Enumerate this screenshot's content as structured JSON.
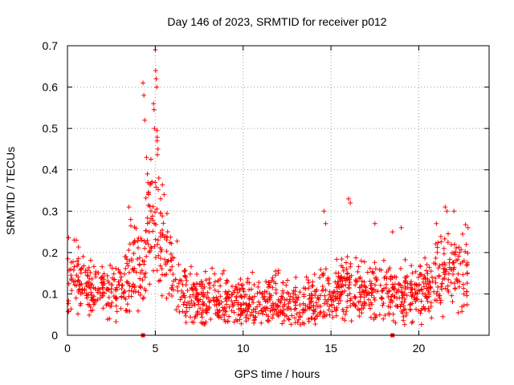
{
  "chart_data": {
    "type": "scatter",
    "title": "Day 146 of 2023, SRMTID for receiver p012",
    "xlabel": "GPS time / hours",
    "ylabel": "SRMTID / TECUs",
    "xlim": [
      0,
      24
    ],
    "ylim": [
      0,
      0.7
    ],
    "xticks": [
      0,
      5,
      10,
      15,
      20
    ],
    "xtick_labels": [
      "0",
      "5",
      "10",
      "15",
      "20"
    ],
    "yticks": [
      0,
      0.1,
      0.2,
      0.3,
      0.4,
      0.5,
      0.6,
      0.7
    ],
    "ytick_labels": [
      "0",
      "0.1",
      "0.2",
      "0.3",
      "0.4",
      "0.5",
      "0.6",
      "0.7"
    ],
    "grid": true,
    "marker": "+",
    "series_color": "#ff0000",
    "trend": [
      [
        0.0,
        0.13
      ],
      [
        0.5,
        0.15
      ],
      [
        1.0,
        0.11
      ],
      [
        1.5,
        0.1
      ],
      [
        2.0,
        0.11
      ],
      [
        2.5,
        0.12
      ],
      [
        3.0,
        0.12
      ],
      [
        3.5,
        0.15
      ],
      [
        4.0,
        0.18
      ],
      [
        4.3,
        0.14
      ],
      [
        4.5,
        0.25
      ],
      [
        4.8,
        0.3
      ],
      [
        5.0,
        0.33
      ],
      [
        5.3,
        0.22
      ],
      [
        5.5,
        0.2
      ],
      [
        6.0,
        0.14
      ],
      [
        6.5,
        0.12
      ],
      [
        7.0,
        0.1
      ],
      [
        8.0,
        0.09
      ],
      [
        9.0,
        0.08
      ],
      [
        10.0,
        0.08
      ],
      [
        11.0,
        0.08
      ],
      [
        12.0,
        0.08
      ],
      [
        13.0,
        0.07
      ],
      [
        14.0,
        0.08
      ],
      [
        14.5,
        0.09
      ],
      [
        15.0,
        0.1
      ],
      [
        15.5,
        0.11
      ],
      [
        16.0,
        0.12
      ],
      [
        17.0,
        0.1
      ],
      [
        17.5,
        0.11
      ],
      [
        18.0,
        0.12
      ],
      [
        18.5,
        0.11
      ],
      [
        19.0,
        0.1
      ],
      [
        20.0,
        0.1
      ],
      [
        20.5,
        0.11
      ],
      [
        21.0,
        0.15
      ],
      [
        21.5,
        0.17
      ],
      [
        22.0,
        0.15
      ],
      [
        22.5,
        0.15
      ],
      [
        22.8,
        0.16
      ]
    ],
    "spikes": [
      [
        4.3,
        0.61
      ],
      [
        4.35,
        0.58
      ],
      [
        4.4,
        0.52
      ],
      [
        4.5,
        0.43
      ],
      [
        4.55,
        0.39
      ],
      [
        4.9,
        0.56
      ],
      [
        4.95,
        0.5
      ],
      [
        5.0,
        0.69
      ],
      [
        5.02,
        0.64
      ],
      [
        5.05,
        0.62
      ],
      [
        5.08,
        0.6
      ],
      [
        5.1,
        0.47
      ],
      [
        5.15,
        0.45
      ],
      [
        5.2,
        0.38
      ],
      [
        5.3,
        0.33
      ],
      [
        5.5,
        0.34
      ],
      [
        3.5,
        0.31
      ],
      [
        3.6,
        0.28
      ],
      [
        14.6,
        0.3
      ],
      [
        14.7,
        0.27
      ],
      [
        16.0,
        0.33
      ],
      [
        16.1,
        0.32
      ],
      [
        17.5,
        0.27
      ],
      [
        18.5,
        0.25
      ],
      [
        19.0,
        0.26
      ],
      [
        21.0,
        0.27
      ],
      [
        21.5,
        0.31
      ],
      [
        21.6,
        0.3
      ],
      [
        22.0,
        0.3
      ],
      [
        22.8,
        0.26
      ],
      [
        0.5,
        0.23
      ],
      [
        13.0,
        0.14
      ],
      [
        12.0,
        0.15
      ]
    ],
    "axis_markers": [
      4.3,
      18.5
    ],
    "point_count": 1400,
    "noise_seed": 146
  }
}
